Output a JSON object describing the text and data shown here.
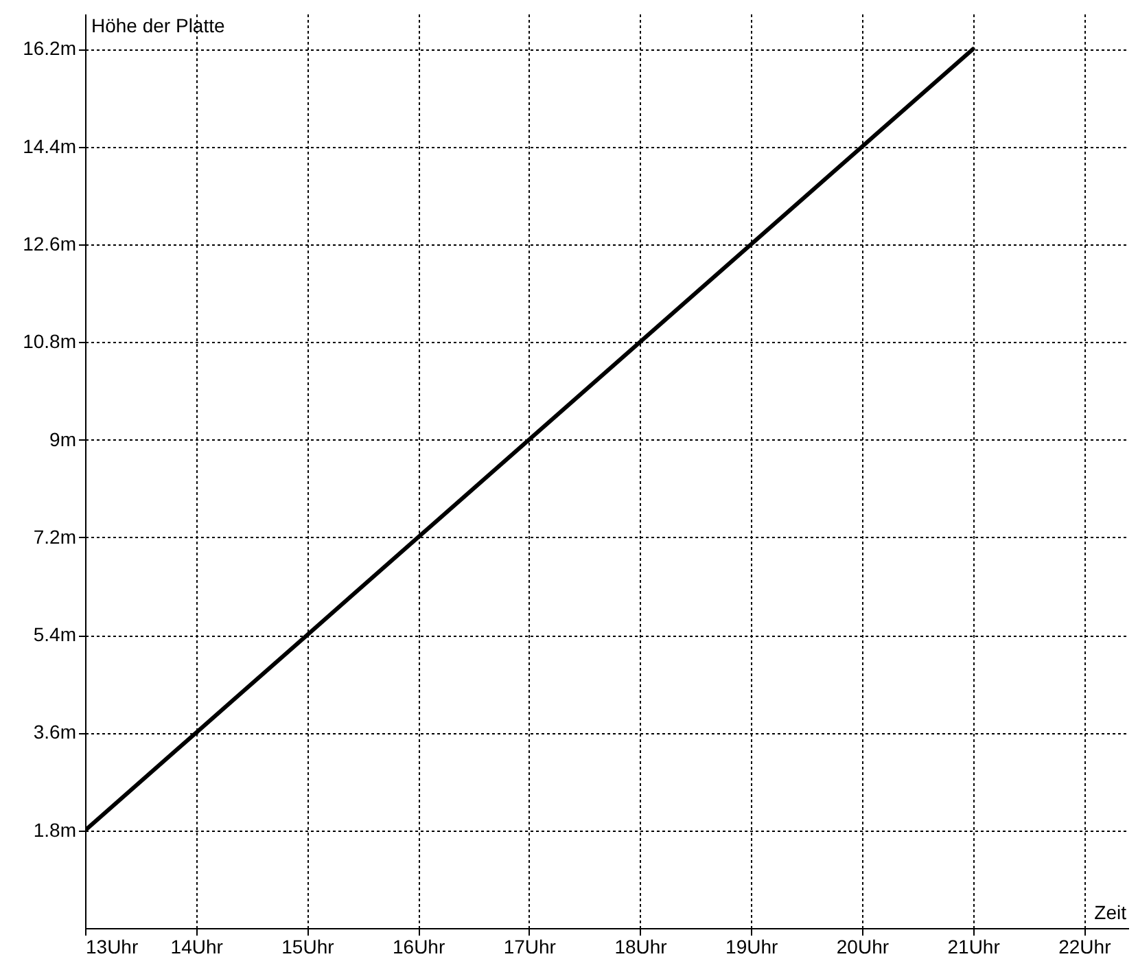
{
  "chart_data": {
    "type": "line",
    "xlabel": "Zeit",
    "ylabel": "Höhe der Platte",
    "x": [
      13,
      14,
      15,
      16,
      17,
      18,
      19,
      20,
      21
    ],
    "series": [
      {
        "color": "#000000",
        "values": [
          1.8,
          3.6,
          5.4,
          7.2,
          9,
          10.8,
          12.6,
          14.4,
          16.2
        ]
      }
    ],
    "xlim": [
      13,
      22.4
    ],
    "ylim": [
      0,
      16.85
    ],
    "xticks": [
      {
        "value": 13,
        "label": "13Uhr"
      },
      {
        "value": 14,
        "label": "14Uhr"
      },
      {
        "value": 15,
        "label": "15Uhr"
      },
      {
        "value": 16,
        "label": "16Uhr"
      },
      {
        "value": 17,
        "label": "17Uhr"
      },
      {
        "value": 18,
        "label": "18Uhr"
      },
      {
        "value": 19,
        "label": "19Uhr"
      },
      {
        "value": 20,
        "label": "20Uhr"
      },
      {
        "value": 21,
        "label": "21Uhr"
      },
      {
        "value": 22,
        "label": "22Uhr"
      }
    ],
    "yticks": [
      {
        "value": 1.8,
        "label": "1.8m"
      },
      {
        "value": 3.6,
        "label": "3.6m"
      },
      {
        "value": 5.4,
        "label": "5.4m"
      },
      {
        "value": 7.2,
        "label": "7.2m"
      },
      {
        "value": 9,
        "label": "9m"
      },
      {
        "value": 10.8,
        "label": "10.8m"
      },
      {
        "value": 12.6,
        "label": "12.6m"
      },
      {
        "value": 14.4,
        "label": "14.4m"
      },
      {
        "value": 16.2,
        "label": "16.2m"
      }
    ],
    "grid": true,
    "marker": "none",
    "line_style": "solid"
  }
}
